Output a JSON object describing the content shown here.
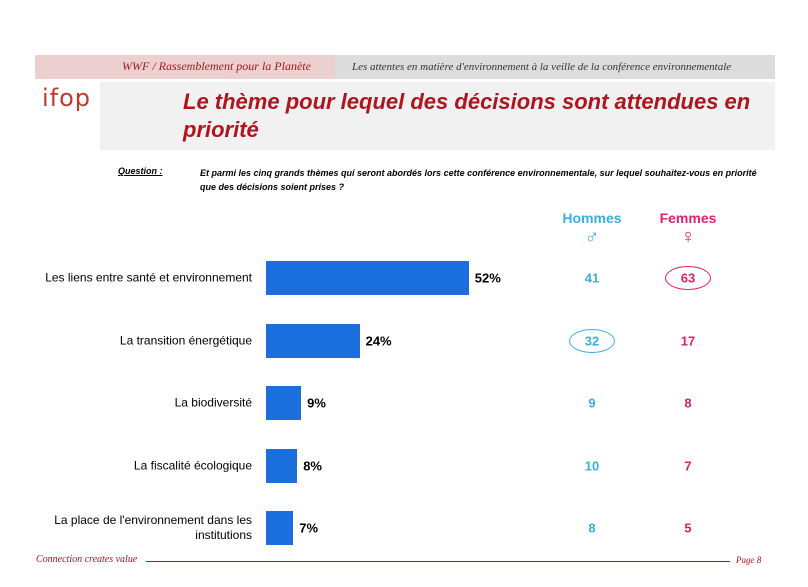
{
  "header": {
    "client": "WWF / Rassemblement pour la Planète",
    "study": "Les attentes en matière d'environnement à la veille de la conférence environnementale",
    "logo": "ifop"
  },
  "chart_data": {
    "type": "bar",
    "title": "Le thème pour lequel des décisions sont attendues en priorité",
    "question_label": "Question :",
    "question": "Et parmi les cinq grands thèmes qui seront abordés lors cette conférence environnementale, sur lequel souhaitez-vous en priorité que des décisions soient prises ?",
    "categories": [
      "Les liens entre santé et environnement",
      "La transition énergétique",
      "La biodiversité",
      "La fiscalité écologique",
      "La place de l'environnement dans les institutions"
    ],
    "values": [
      52,
      24,
      9,
      8,
      7
    ],
    "value_labels": [
      "52%",
      "24%",
      "9%",
      "8%",
      "7%"
    ],
    "color": "#1a6fdc",
    "columns": [
      {
        "name": "Hommes",
        "symbol": "♂",
        "color": "#3bb0e0",
        "values": [
          41,
          32,
          9,
          10,
          8
        ],
        "circled": [
          false,
          true,
          false,
          false,
          false
        ]
      },
      {
        "name": "Femmes",
        "symbol": "♀",
        "color": "#e0206e",
        "values": [
          63,
          17,
          8,
          7,
          5
        ],
        "circled": [
          true,
          false,
          false,
          false,
          false
        ]
      }
    ]
  },
  "footer": {
    "tagline": "Connection creates value",
    "page": "Page 8"
  }
}
